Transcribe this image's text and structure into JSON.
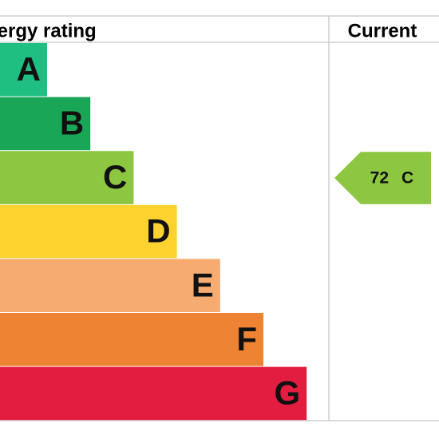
{
  "header": {
    "title": "Energy rating",
    "current": "Current"
  },
  "bands": [
    {
      "letter": "A",
      "color": "#1fbf81"
    },
    {
      "letter": "B",
      "color": "#1aa657"
    },
    {
      "letter": "C",
      "color": "#8dc641"
    },
    {
      "letter": "D",
      "color": "#fdd22f"
    },
    {
      "letter": "E",
      "color": "#f6ac70"
    },
    {
      "letter": "F",
      "color": "#ee8333"
    },
    {
      "letter": "G",
      "color": "#e31d40"
    }
  ],
  "current": {
    "value": 72,
    "band": "C"
  }
}
